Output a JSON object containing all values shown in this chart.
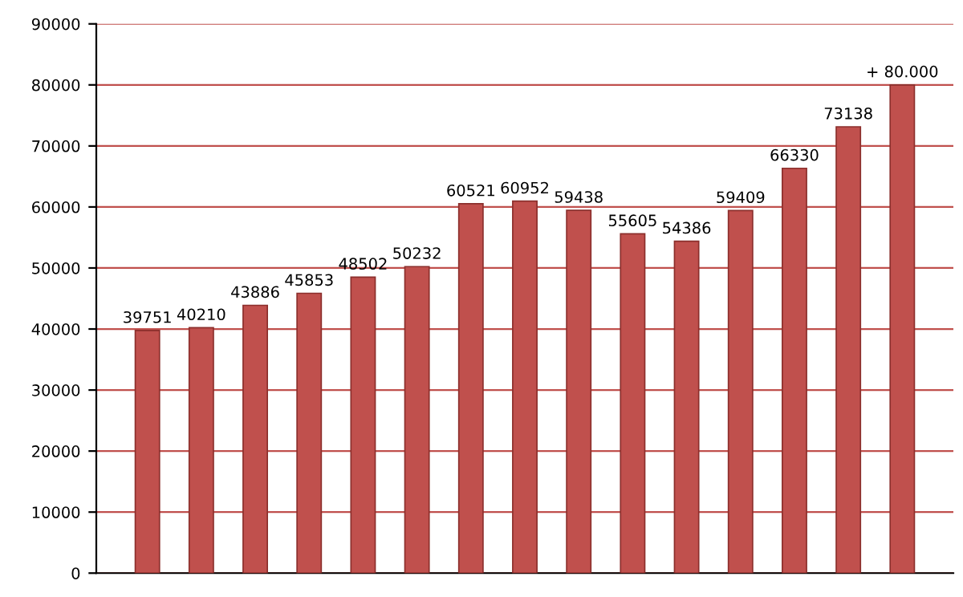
{
  "chart_data": {
    "type": "bar",
    "categories": [
      null,
      null,
      null,
      null,
      null,
      null,
      null,
      null,
      null,
      null,
      null,
      null,
      null,
      null,
      null
    ],
    "values": [
      39751,
      40210,
      43886,
      45853,
      48502,
      50232,
      60521,
      60952,
      59438,
      55605,
      54386,
      59409,
      66330,
      73138,
      80000
    ],
    "value_labels": [
      "39751",
      "40210",
      "43886",
      "45853",
      "48502",
      "50232",
      "60521",
      "60952",
      "59438",
      "55605",
      "54386",
      "59409",
      "66330",
      "73138",
      "+ 80.000"
    ],
    "color": "#c0504d",
    "ylim": [
      0,
      90000
    ],
    "yticks": [
      0,
      10000,
      20000,
      30000,
      40000,
      50000,
      60000,
      70000,
      80000,
      90000
    ],
    "grid": "y"
  }
}
